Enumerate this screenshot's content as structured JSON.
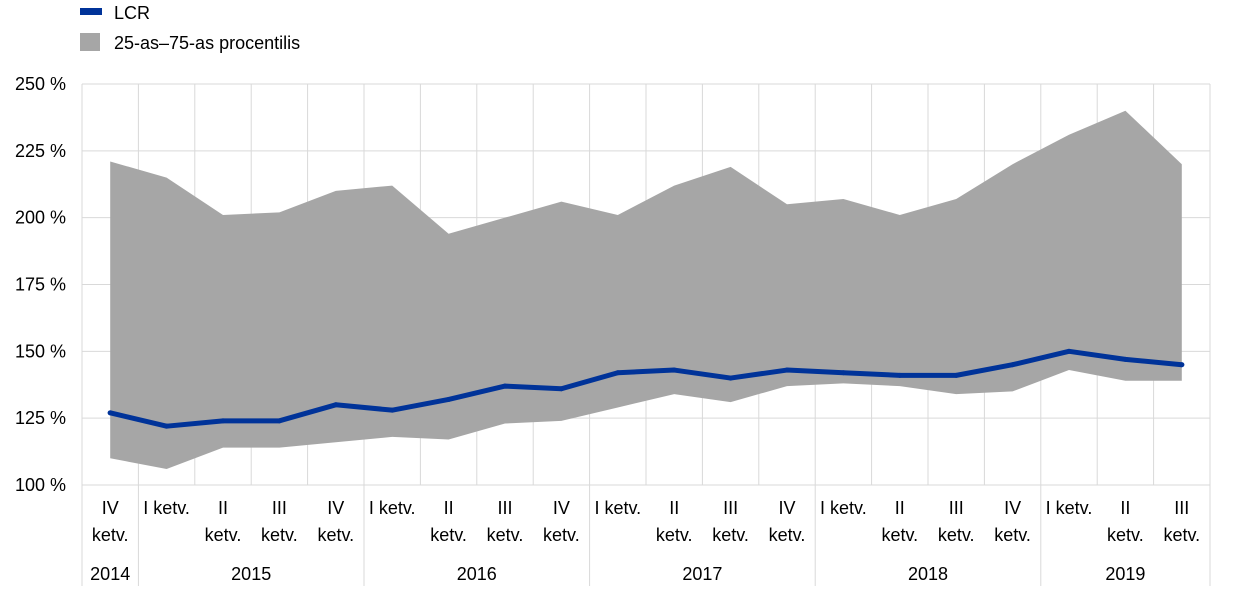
{
  "chart_data": {
    "type": "area",
    "legend": [
      {
        "label": "LCR",
        "color": "#003399",
        "marker": "line"
      },
      {
        "label": "25-as–75-as procentilis",
        "color": "#a6a6a6",
        "marker": "square"
      }
    ],
    "legend_position": "top-left",
    "categories": [
      {
        "quarter": [
          "IV",
          "ketv."
        ],
        "year": "2014"
      },
      {
        "quarter": [
          "I ketv."
        ],
        "year": "2015"
      },
      {
        "quarter": [
          "II",
          "ketv."
        ],
        "year": "2015"
      },
      {
        "quarter": [
          "III",
          "ketv."
        ],
        "year": "2015"
      },
      {
        "quarter": [
          "IV",
          "ketv."
        ],
        "year": "2015"
      },
      {
        "quarter": [
          "I ketv."
        ],
        "year": "2016"
      },
      {
        "quarter": [
          "II",
          "ketv."
        ],
        "year": "2016"
      },
      {
        "quarter": [
          "III",
          "ketv."
        ],
        "year": "2016"
      },
      {
        "quarter": [
          "IV",
          "ketv."
        ],
        "year": "2016"
      },
      {
        "quarter": [
          "I ketv."
        ],
        "year": "2017"
      },
      {
        "quarter": [
          "II",
          "ketv."
        ],
        "year": "2017"
      },
      {
        "quarter": [
          "III",
          "ketv."
        ],
        "year": "2017"
      },
      {
        "quarter": [
          "IV",
          "ketv."
        ],
        "year": "2017"
      },
      {
        "quarter": [
          "I ketv."
        ],
        "year": "2018"
      },
      {
        "quarter": [
          "II",
          "ketv."
        ],
        "year": "2018"
      },
      {
        "quarter": [
          "III",
          "ketv."
        ],
        "year": "2018"
      },
      {
        "quarter": [
          "IV",
          "ketv."
        ],
        "year": "2018"
      },
      {
        "quarter": [
          "I ketv."
        ],
        "year": "2019"
      },
      {
        "quarter": [
          "II",
          "ketv."
        ],
        "year": "2019"
      },
      {
        "quarter": [
          "III",
          "ketv."
        ],
        "year": "2019"
      }
    ],
    "year_groups": [
      {
        "label": "2014",
        "count": 1
      },
      {
        "label": "2015",
        "count": 4
      },
      {
        "label": "2016",
        "count": 4
      },
      {
        "label": "2017",
        "count": 4
      },
      {
        "label": "2018",
        "count": 4
      },
      {
        "label": "2019",
        "count": 3
      }
    ],
    "series": [
      {
        "name": "25-as–75-as procentilis",
        "kind": "band",
        "color": "#a6a6a6",
        "lower": [
          110,
          106,
          114,
          114,
          116,
          118,
          117,
          123,
          124,
          129,
          134,
          131,
          137,
          138,
          137,
          134,
          135,
          143,
          139,
          139
        ],
        "upper": [
          221,
          215,
          201,
          202,
          210,
          212,
          194,
          200,
          206,
          201,
          212,
          219,
          205,
          207,
          201,
          207,
          220,
          231,
          240,
          220
        ]
      },
      {
        "name": "LCR",
        "kind": "line",
        "color": "#003399",
        "values": [
          127,
          122,
          124,
          124,
          130,
          128,
          132,
          137,
          136,
          142,
          143,
          140,
          143,
          142,
          141,
          141,
          145,
          150,
          147,
          145
        ]
      }
    ],
    "ylim": [
      100,
      250
    ],
    "yticks": [
      100,
      125,
      150,
      175,
      200,
      225,
      250
    ],
    "ytick_labels": [
      "100 %",
      "125 %",
      "150 %",
      "175 %",
      "200 %",
      "225 %",
      "250 %"
    ],
    "grid": true,
    "xlabel": "",
    "ylabel": ""
  }
}
